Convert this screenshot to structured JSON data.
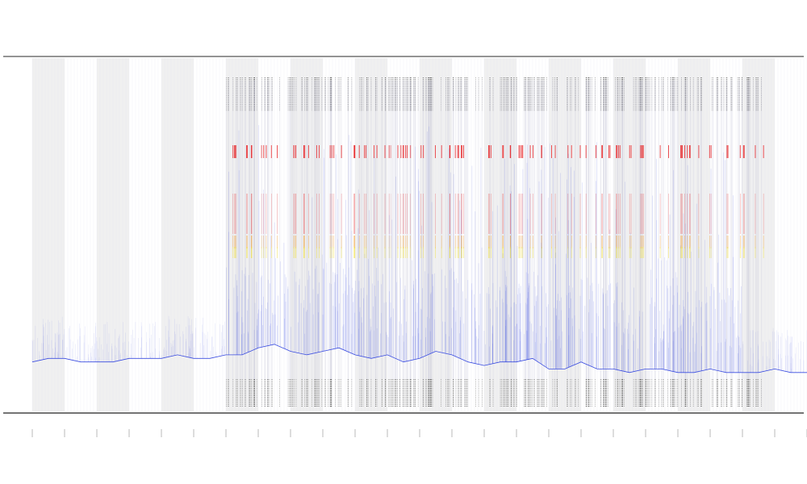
{
  "chart_data": {
    "type": "line",
    "title": "",
    "xlabel": "",
    "ylabel": "",
    "grid": true,
    "background_bands": "alternating-vertical-gray",
    "colors": {
      "line": "#3b4de0",
      "band": "#f0f0f0",
      "event_black": "#222222",
      "event_red": "#e8272a",
      "event_orange": "#f2a23a",
      "event_yellow": "#f2e24a",
      "frame": "#333333"
    },
    "xlim": [
      0,
      24
    ],
    "bands": [
      [
        0,
        1
      ],
      [
        2,
        3
      ],
      [
        4,
        5
      ],
      [
        6,
        7
      ],
      [
        8,
        9
      ],
      [
        10,
        11
      ],
      [
        12,
        13
      ],
      [
        14,
        15
      ],
      [
        16,
        17
      ],
      [
        18,
        19
      ],
      [
        20,
        21
      ],
      [
        22,
        23
      ]
    ],
    "series": [
      {
        "x": [
          0,
          0.5,
          1,
          1.5,
          2,
          2.5,
          3,
          3.5,
          4,
          4.5,
          5,
          5.5,
          6,
          6.5,
          7,
          7.5,
          8,
          8.5,
          9,
          9.5,
          10,
          10.5,
          11,
          11.5,
          12,
          12.5,
          13,
          13.5,
          14,
          14.5,
          15,
          15.5,
          16,
          16.5,
          17,
          17.5,
          18,
          18.5,
          19,
          19.5,
          20,
          20.5,
          21,
          21.5,
          22,
          22.5,
          23,
          23.5,
          24
        ],
        "values": [
          0.14,
          0.15,
          0.15,
          0.14,
          0.14,
          0.14,
          0.15,
          0.15,
          0.15,
          0.16,
          0.15,
          0.15,
          0.16,
          0.16,
          0.18,
          0.19,
          0.17,
          0.16,
          0.17,
          0.18,
          0.16,
          0.15,
          0.16,
          0.14,
          0.15,
          0.17,
          0.16,
          0.14,
          0.13,
          0.14,
          0.14,
          0.15,
          0.12,
          0.12,
          0.14,
          0.12,
          0.12,
          0.11,
          0.12,
          0.12,
          0.11,
          0.11,
          0.12,
          0.11,
          0.11,
          0.11,
          0.12,
          0.11,
          0.11
        ]
      }
    ],
    "event_clusters": [
      6.2,
      6.6,
      7.0,
      7.4,
      8.1,
      8.6,
      9.0,
      9.4,
      10.1,
      10.5,
      11.0,
      11.3,
      11.7,
      12.0,
      12.6,
      13.1,
      13.4,
      14.0,
      14.6,
      15.1,
      15.6,
      16.0,
      16.5,
      17.1,
      17.5,
      18.0,
      18.3,
      18.7,
      19.1,
      19.6,
      20.0,
      20.5,
      21.0,
      21.5,
      22.1,
      22.5
    ]
  }
}
